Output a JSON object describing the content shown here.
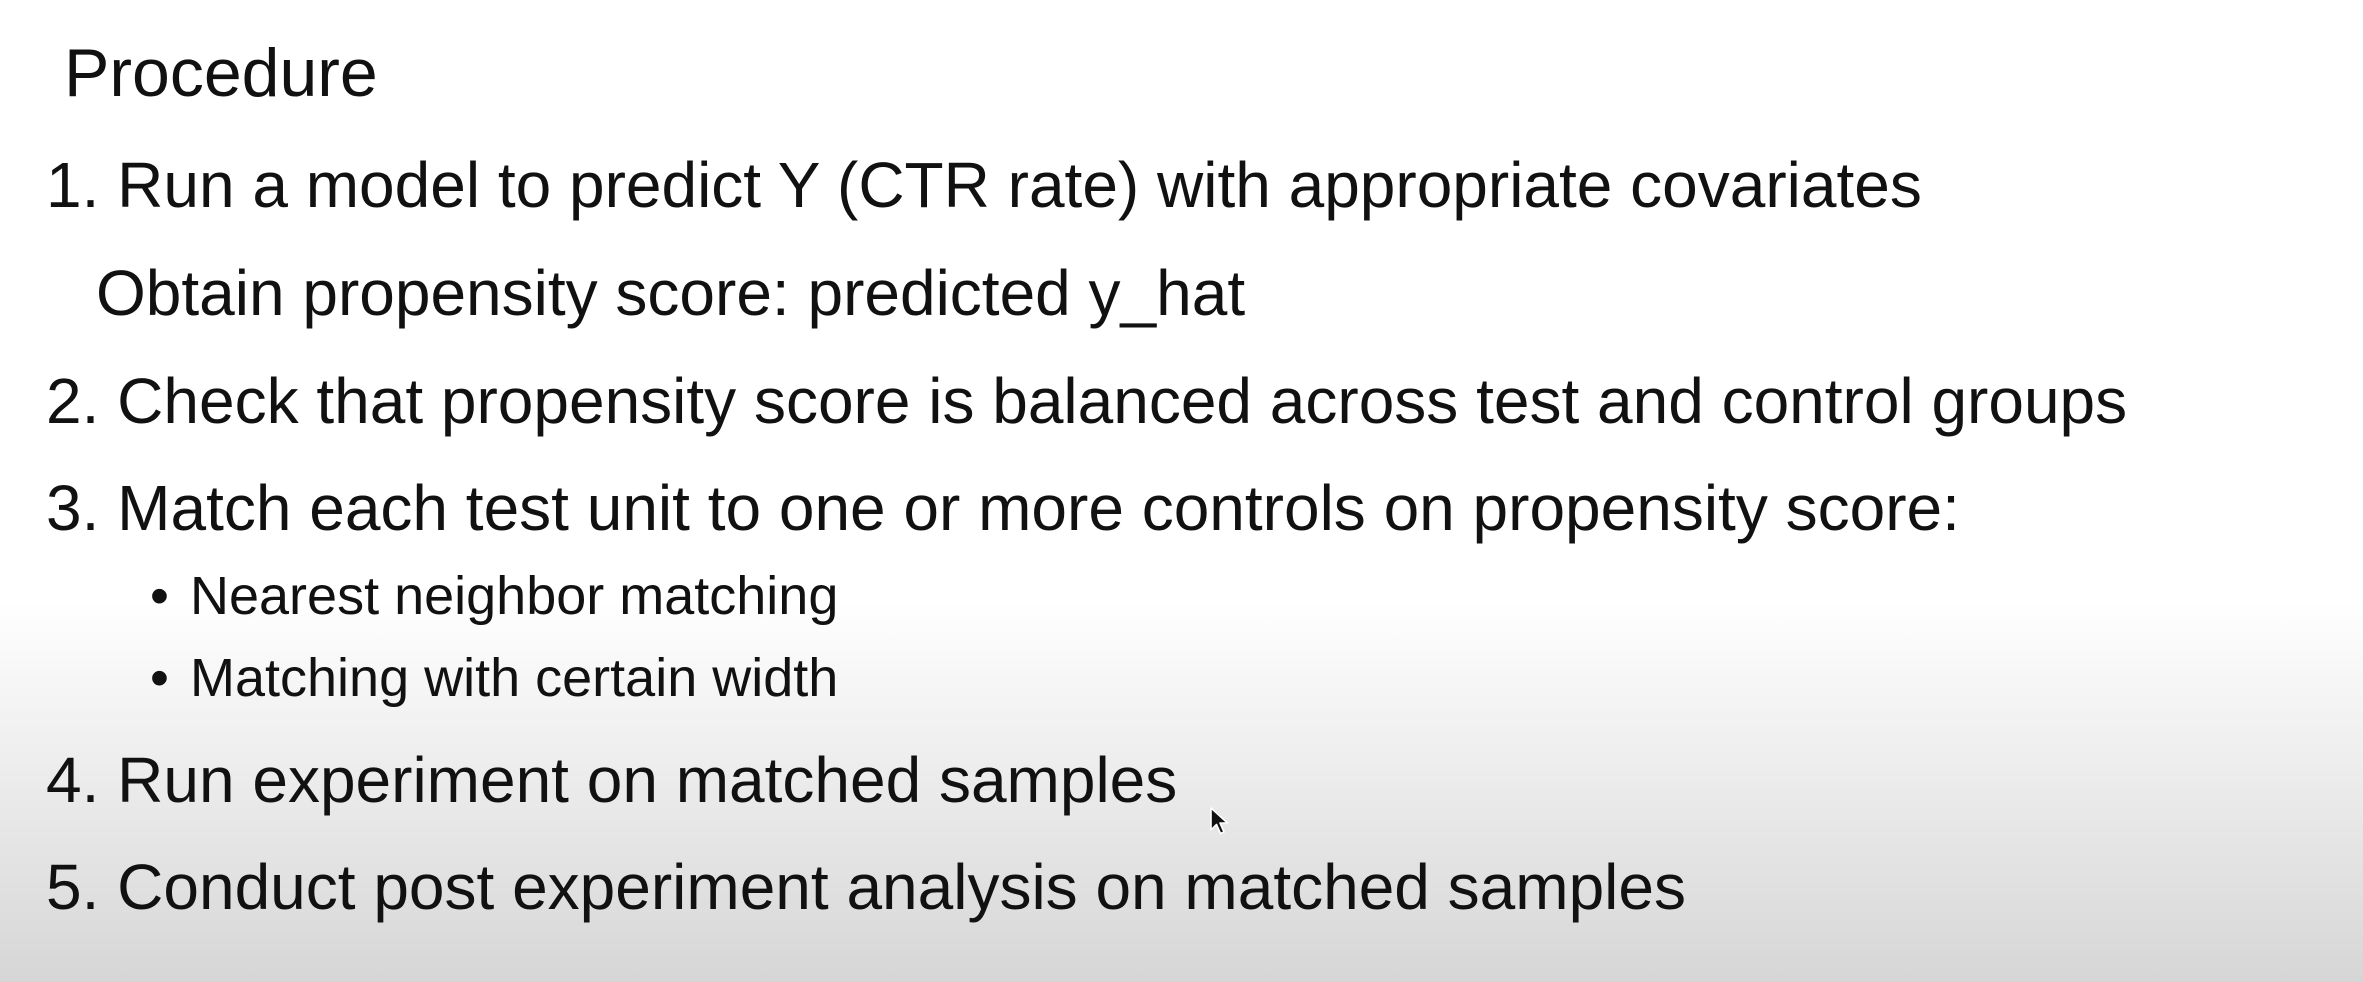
{
  "title": "Procedure",
  "steps": [
    {
      "number": "1.",
      "text": "Run a model to predict Y (CTR rate) with appropriate covariates"
    },
    {
      "number": "2.",
      "text": "Check that propensity score is balanced across test and control groups"
    },
    {
      "number": "3.",
      "text": "Match each test unit to one or more controls on propensity score:"
    },
    {
      "number": "4.",
      "text": "Run experiment on matched samples"
    },
    {
      "number": "5.",
      "text": "Conduct post experiment analysis on matched samples"
    }
  ],
  "step1_sub": "Obtain propensity score: predicted y_hat",
  "step3_bullets": [
    "Nearest neighbor matching",
    "Matching with certain width"
  ],
  "bullet_glyph": "•",
  "icons": {
    "cursor": "mouse-pointer-icon"
  }
}
